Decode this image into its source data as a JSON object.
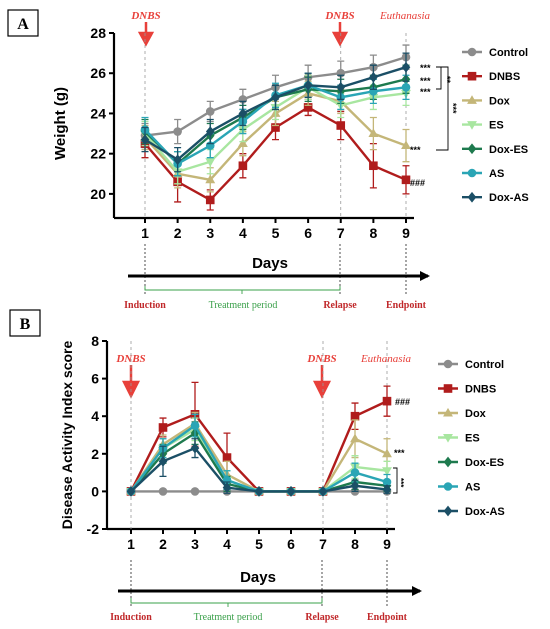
{
  "panels": {
    "a": {
      "label": "A",
      "annotations": {
        "dnbs_1": "DNBS",
        "dnbs_2": "DNBS",
        "euthanasia": "Euthanasia"
      },
      "timeline": {
        "days": "Days",
        "induction": "Induction",
        "treatment": "Treatment period",
        "relapse": "Relapse",
        "endpoint": "Endpoint"
      },
      "significance": {
        "control_top": "***",
        "row2": "***",
        "row3": "***",
        "dox": "***",
        "dnbs": "###",
        "bracket_short": "**",
        "bracket_long": "***"
      }
    },
    "b": {
      "label": "B",
      "annotations": {
        "dnbs_1": "DNBS",
        "dnbs_2": "DNBS",
        "euthanasia": "Euthanasia"
      },
      "timeline": {
        "days": "Days",
        "induction": "Induction",
        "treatment": "Treatment period",
        "relapse": "Relapse",
        "endpoint": "Endpoint"
      },
      "significance": {
        "dnbs": "###",
        "dox": "***",
        "bracket": "***"
      }
    }
  },
  "colors": {
    "Control": "#8c8c8c",
    "DNBS": "#b01c1c",
    "Dox": "#c4b678",
    "ES": "#a8e6a0",
    "Dox-ES": "#1e7a4e",
    "AS": "#2aa5b5",
    "Dox-AS": "#1b4f66",
    "accent_red": "#e8403a",
    "green_text": "#3aa04a"
  },
  "chart_data": [
    {
      "type": "line",
      "ylabel": "Weight (g)",
      "xlabel": "",
      "x": [
        1,
        2,
        3,
        4,
        5,
        6,
        7,
        8,
        9
      ],
      "ylim": [
        19,
        28
      ],
      "yticks": [
        20,
        22,
        24,
        26,
        28
      ],
      "legend_position": "right",
      "series": [
        {
          "name": "Control",
          "marker": "circle",
          "values": [
            22.9,
            23.1,
            24.1,
            24.7,
            25.3,
            25.8,
            26.0,
            26.3,
            26.8
          ],
          "err": [
            0.6,
            0.6,
            0.5,
            0.5,
            0.6,
            0.6,
            0.6,
            0.6,
            0.6
          ]
        },
        {
          "name": "DNBS",
          "marker": "square",
          "values": [
            22.5,
            20.6,
            19.7,
            21.4,
            23.3,
            24.3,
            23.4,
            21.4,
            20.7
          ],
          "err": [
            0.7,
            1.0,
            0.5,
            0.6,
            0.6,
            0.4,
            0.7,
            1.1,
            0.7
          ]
        },
        {
          "name": "Dox",
          "marker": "triangle-up",
          "values": [
            22.8,
            21.0,
            20.7,
            22.5,
            24.0,
            25.0,
            24.6,
            23.0,
            22.4
          ],
          "err": [
            0.6,
            0.7,
            0.6,
            0.6,
            0.6,
            0.6,
            0.6,
            0.8,
            0.8
          ]
        },
        {
          "name": "ES",
          "marker": "triangle-down",
          "values": [
            23.0,
            21.1,
            21.6,
            23.2,
            24.3,
            25.3,
            24.4,
            24.8,
            25.0
          ],
          "err": [
            0.6,
            0.6,
            0.6,
            0.6,
            0.6,
            0.6,
            0.6,
            0.6,
            0.6
          ]
        },
        {
          "name": "Dox-ES",
          "marker": "diamond",
          "values": [
            23.1,
            21.5,
            22.9,
            23.8,
            24.8,
            25.2,
            25.1,
            25.3,
            25.7
          ],
          "err": [
            0.6,
            0.6,
            0.6,
            0.6,
            0.6,
            0.6,
            0.6,
            0.6,
            0.7
          ]
        },
        {
          "name": "AS",
          "marker": "circle",
          "values": [
            23.2,
            21.5,
            22.4,
            23.6,
            24.9,
            25.4,
            24.8,
            25.1,
            25.3
          ],
          "err": [
            0.6,
            0.6,
            0.6,
            0.6,
            0.6,
            0.6,
            0.6,
            0.6,
            0.6
          ]
        },
        {
          "name": "Dox-AS",
          "marker": "diamond",
          "values": [
            22.7,
            21.7,
            23.1,
            24.0,
            24.8,
            25.4,
            25.3,
            25.8,
            26.3
          ],
          "err": [
            0.6,
            0.6,
            0.6,
            0.6,
            0.6,
            0.6,
            0.6,
            0.6,
            0.7
          ]
        }
      ]
    },
    {
      "type": "line",
      "ylabel": "Disease Activity Index score",
      "xlabel": "",
      "x": [
        1,
        2,
        3,
        4,
        5,
        6,
        7,
        8,
        9
      ],
      "ylim": [
        -2,
        8
      ],
      "yticks": [
        -2,
        0,
        2,
        4,
        6,
        8
      ],
      "legend_position": "right",
      "series": [
        {
          "name": "Control",
          "marker": "circle",
          "values": [
            0,
            0,
            0,
            0,
            0,
            0,
            0,
            0,
            0
          ],
          "err": [
            0,
            0,
            0,
            0,
            0,
            0,
            0,
            0,
            0
          ]
        },
        {
          "name": "DNBS",
          "marker": "square",
          "values": [
            0,
            3.4,
            4.1,
            1.8,
            0,
            0,
            0,
            4.0,
            4.8
          ],
          "err": [
            0,
            0.5,
            1.7,
            1.3,
            0,
            0,
            0,
            0.7,
            0.8
          ]
        },
        {
          "name": "Dox",
          "marker": "triangle-up",
          "values": [
            0,
            2.5,
            3.6,
            0.9,
            0,
            0,
            0,
            2.8,
            2.0
          ],
          "err": [
            0,
            0.5,
            0.6,
            0.7,
            0,
            0,
            0,
            1.0,
            0.8
          ]
        },
        {
          "name": "ES",
          "marker": "triangle-down",
          "values": [
            0,
            2.3,
            3.3,
            0.6,
            0,
            0,
            0,
            1.3,
            1.1
          ],
          "err": [
            0,
            0.5,
            0.6,
            0.5,
            0,
            0,
            0,
            0.6,
            0.5
          ]
        },
        {
          "name": "Dox-ES",
          "marker": "diamond",
          "values": [
            0,
            2.0,
            3.1,
            0.4,
            0,
            0,
            0,
            0.5,
            0.3
          ],
          "err": [
            0,
            0.5,
            0.6,
            0.4,
            0,
            0,
            0,
            0.4,
            0.3
          ]
        },
        {
          "name": "AS",
          "marker": "circle",
          "values": [
            0,
            2.3,
            3.5,
            0.6,
            0,
            0,
            0,
            1.0,
            0.5
          ],
          "err": [
            0,
            0.5,
            0.6,
            0.5,
            0,
            0,
            0,
            0.5,
            0.4
          ]
        },
        {
          "name": "Dox-AS",
          "marker": "diamond",
          "values": [
            0,
            1.6,
            2.3,
            0.2,
            0,
            0,
            0,
            0.3,
            0.1
          ],
          "err": [
            0,
            0.8,
            0.5,
            0.3,
            0,
            0,
            0,
            0.3,
            0.2
          ]
        }
      ]
    }
  ]
}
